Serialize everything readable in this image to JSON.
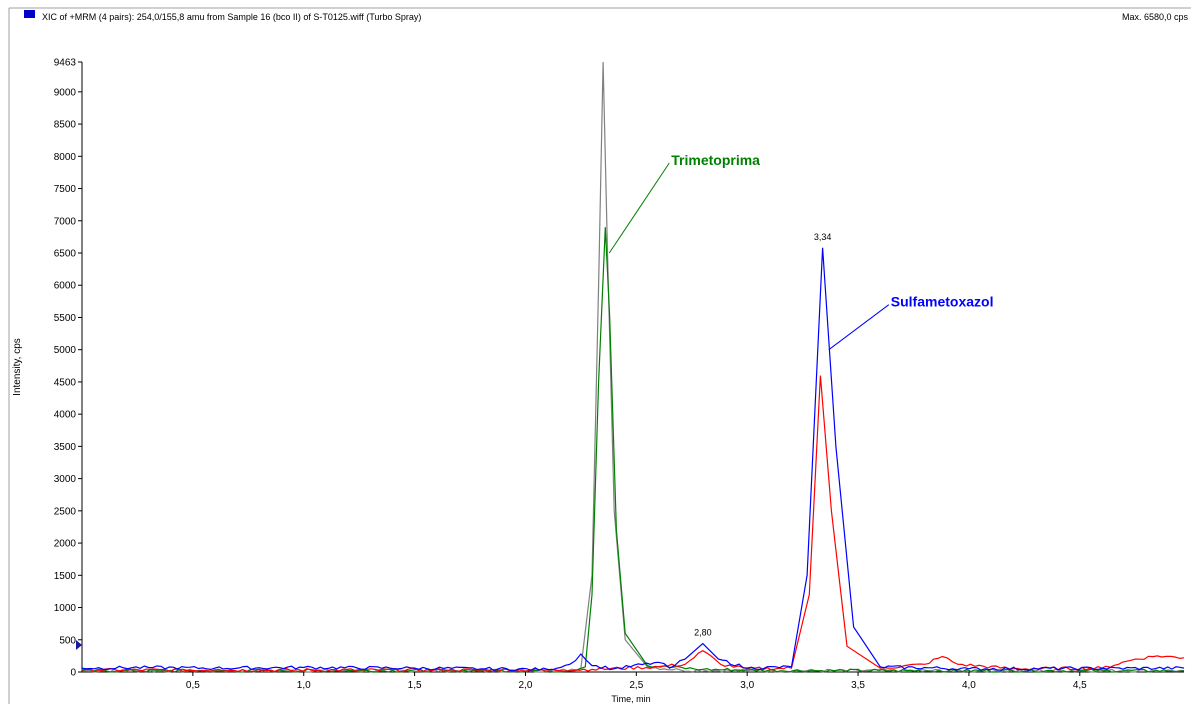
{
  "header": {
    "title": "XIC of +MRM (4 pairs): 254,0/155,8 amu from Sample 16 (bco II) of S-T0125.wiff (Turbo Spray)",
    "max_label": "Max. 6580,0 cps",
    "series_marker_color": "#0000cc"
  },
  "chart_data": {
    "type": "line",
    "xlabel": "Time, min",
    "ylabel": "Intensity, cps",
    "xlim": [
      0.0,
      4.97
    ],
    "ylim": [
      0,
      9463
    ],
    "x_ticks": [
      0.5,
      1.0,
      1.5,
      2.0,
      2.5,
      3.0,
      3.5,
      4.0,
      4.5
    ],
    "x_tick_labels": [
      "0,5",
      "1,0",
      "1,5",
      "2,0",
      "2,5",
      "3,0",
      "3,5",
      "4,0",
      "4,5"
    ],
    "y_ticks": [
      0,
      500,
      1000,
      1500,
      2000,
      2500,
      3000,
      3500,
      4000,
      4500,
      5000,
      5500,
      6000,
      6500,
      7000,
      7500,
      8000,
      8500,
      9000,
      9463
    ],
    "y_tick_labels": [
      "0",
      "500",
      "1000",
      "1500",
      "2000",
      "2500",
      "3000",
      "3500",
      "4000",
      "4500",
      "5000",
      "5500",
      "6000",
      "6500",
      "7000",
      "7500",
      "8000",
      "8500",
      "9000",
      "9463"
    ],
    "series": [
      {
        "color": "#808080",
        "x": [
          0.0,
          2.15,
          2.25,
          2.3,
          2.33,
          2.35,
          2.37,
          2.4,
          2.45,
          2.55,
          2.7,
          3.0,
          4.97
        ],
        "y": [
          20,
          20,
          60,
          1500,
          6000,
          9463,
          6500,
          2500,
          500,
          80,
          30,
          20,
          20
        ]
      },
      {
        "color": "#008000",
        "x": [
          0.0,
          2.2,
          2.27,
          2.3,
          2.33,
          2.36,
          2.38,
          2.41,
          2.45,
          2.55,
          2.8,
          3.3,
          4.97
        ],
        "y": [
          20,
          20,
          80,
          1200,
          4500,
          6900,
          5500,
          2200,
          600,
          100,
          40,
          20,
          20
        ]
      },
      {
        "color": "#ff0000",
        "x": [
          0.0,
          2.1,
          2.3,
          2.6,
          2.72,
          2.8,
          2.88,
          3.0,
          3.2,
          3.28,
          3.33,
          3.38,
          3.45,
          3.6,
          3.8,
          3.88,
          3.95,
          4.2,
          4.6,
          4.75,
          4.85,
          4.97
        ],
        "y": [
          30,
          30,
          40,
          80,
          120,
          330,
          120,
          50,
          60,
          1200,
          4600,
          2500,
          400,
          60,
          120,
          240,
          120,
          50,
          60,
          200,
          250,
          220
        ]
      },
      {
        "color": "#0000ff",
        "x": [
          0.0,
          0.3,
          0.6,
          1.0,
          1.5,
          1.8,
          2.1,
          2.2,
          2.25,
          2.3,
          2.4,
          2.6,
          2.65,
          2.72,
          2.8,
          2.87,
          3.0,
          3.2,
          3.27,
          3.34,
          3.4,
          3.48,
          3.6,
          4.0,
          4.97
        ],
        "y": [
          60,
          70,
          60,
          70,
          60,
          50,
          40,
          120,
          280,
          100,
          50,
          150,
          60,
          200,
          440,
          200,
          60,
          80,
          1500,
          6580,
          3500,
          700,
          80,
          50,
          60
        ]
      }
    ],
    "peak_labels": [
      {
        "text": "3,34",
        "x": 3.34,
        "y": 6580
      },
      {
        "text": "2,80",
        "x": 2.8,
        "y": 440
      }
    ],
    "annotations": [
      {
        "text": "Trimetoprima",
        "color": "#008000",
        "target_x": 2.36,
        "target_y": 6500
      },
      {
        "text": "Sulfametoxazol",
        "color": "#0000ff",
        "target_x": 3.35,
        "target_y": 5000
      }
    ]
  }
}
